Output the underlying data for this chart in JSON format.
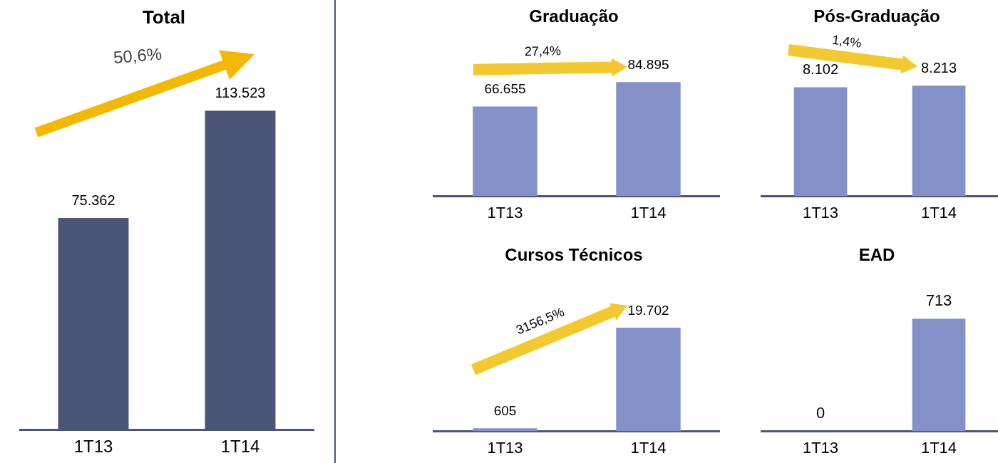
{
  "chart_data": [
    {
      "type": "bar",
      "title": "Total",
      "categories": [
        "1T13",
        "1T14"
      ],
      "values": [
        75362,
        113523
      ],
      "value_labels": [
        "75.362",
        "113.523"
      ],
      "color": "#4a5578",
      "tick_labels": "x",
      "grid": false,
      "legend": false,
      "annotations": [
        "50,6%"
      ]
    },
    {
      "type": "bar",
      "title": "Graduação",
      "categories": [
        "1T13",
        "1T14"
      ],
      "values": [
        66655,
        84895
      ],
      "value_labels": [
        "66.655",
        "84.895"
      ],
      "color": "#8491c8",
      "tick_labels": "x",
      "grid": false,
      "legend": false,
      "annotations": [
        "27,4%"
      ]
    },
    {
      "type": "bar",
      "title": "Pós-Graduação",
      "categories": [
        "1T13",
        "1T14"
      ],
      "values": [
        8102,
        8213
      ],
      "value_labels": [
        "8.102",
        "8.213"
      ],
      "color": "#8491c8",
      "tick_labels": "x",
      "grid": false,
      "legend": false,
      "annotations": [
        "1,4%"
      ]
    },
    {
      "type": "bar",
      "title": "Cursos Técnicos",
      "categories": [
        "1T13",
        "1T14"
      ],
      "values": [
        605,
        19702
      ],
      "value_labels": [
        "605",
        "19.702"
      ],
      "color": "#8491c8",
      "tick_labels": "x",
      "grid": false,
      "legend": false,
      "annotations": [
        "3156,5%"
      ]
    },
    {
      "type": "bar",
      "title": "EAD",
      "categories": [
        "1T13",
        "1T14"
      ],
      "values": [
        0,
        713
      ],
      "value_labels": [
        "0",
        "713"
      ],
      "color": "#8491c8",
      "tick_labels": "x",
      "grid": false,
      "legend": false
    }
  ]
}
